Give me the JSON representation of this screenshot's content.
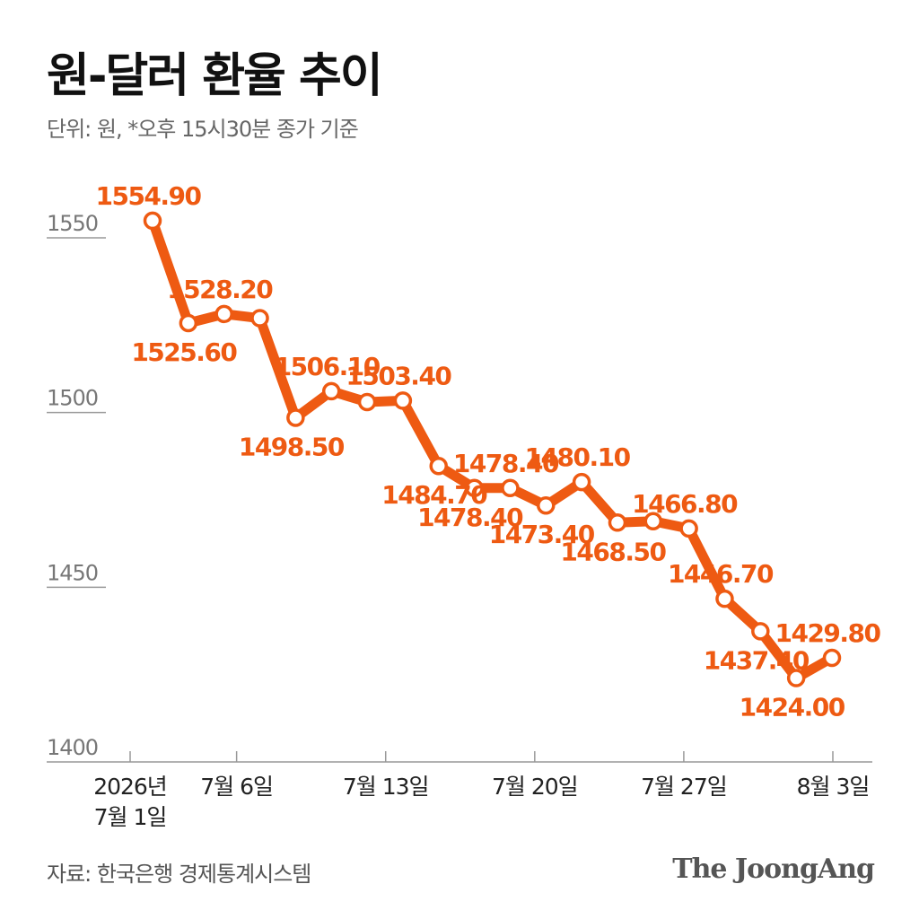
{
  "header": {
    "title": "원-달러 환율 추이",
    "subtitle": "단위: 원, *오후 15시30분 종가 기준"
  },
  "footer": {
    "source": "자료: 한국은행 경제통계시스템",
    "logo_text": "The JoongAng"
  },
  "chart_data": {
    "type": "line",
    "title": "원-달러 환율 추이",
    "unit": "원",
    "ylim": [
      1400,
      1560
    ],
    "yticks": [
      1400,
      1450,
      1500,
      1550
    ],
    "grid": false,
    "color": "#EE5A12",
    "x_tick_labels": [
      {
        "lines": [
          "2026년",
          "7월 1일"
        ],
        "date": "2026-07-01"
      },
      {
        "lines": [
          "7월 6일"
        ],
        "date": "2026-07-06"
      },
      {
        "lines": [
          "7월 13일"
        ],
        "date": "2026-07-13"
      },
      {
        "lines": [
          "7월 20일"
        ],
        "date": "2026-07-20"
      },
      {
        "lines": [
          "7월 27일"
        ],
        "date": "2026-07-27"
      },
      {
        "lines": [
          "8월 3일"
        ],
        "date": "2026-08-03"
      }
    ],
    "points": [
      {
        "date": "2026-07-01",
        "value": 1554.9,
        "label": "1554.90",
        "label_pos": "above"
      },
      {
        "date": "2026-07-02",
        "value": 1525.6,
        "label": "1525.60",
        "label_pos": "below"
      },
      {
        "date": "2026-07-03",
        "value": 1528.2,
        "label": "1528.20",
        "label_pos": "above"
      },
      {
        "date": "2026-07-06",
        "value": 1527.0
      },
      {
        "date": "2026-07-07",
        "value": 1498.5,
        "label": "1498.50",
        "label_pos": "below"
      },
      {
        "date": "2026-07-08",
        "value": 1506.1,
        "label": "1506.10",
        "label_pos": "above"
      },
      {
        "date": "2026-07-09",
        "value": 1503.0
      },
      {
        "date": "2026-07-10",
        "value": 1503.4,
        "label": "1503.40",
        "label_pos": "above"
      },
      {
        "date": "2026-07-13",
        "value": 1484.7,
        "label": "1484.70",
        "label_pos": "below"
      },
      {
        "date": "2026-07-14",
        "value": 1478.4,
        "label": "1478.40",
        "label_pos": "below"
      },
      {
        "date": "2026-07-15",
        "value": 1478.4,
        "label": "1478.40",
        "label_pos": "above"
      },
      {
        "date": "2026-07-16",
        "value": 1473.4,
        "label": "1473.40",
        "label_pos": "below"
      },
      {
        "date": "2026-07-17",
        "value": 1480.1,
        "label": "1480.10",
        "label_pos": "above"
      },
      {
        "date": "2026-07-20",
        "value": 1468.5,
        "label": "1468.50",
        "label_pos": "below"
      },
      {
        "date": "2026-07-21",
        "value": 1468.9
      },
      {
        "date": "2026-07-22",
        "value": 1466.8,
        "label": "1466.80",
        "label_pos": "above"
      },
      {
        "date": "2026-07-23",
        "value": 1446.7,
        "label": "1446.70",
        "label_pos": "above"
      },
      {
        "date": "2026-07-24",
        "value": 1437.4,
        "label": "1437.40",
        "label_pos": "below"
      },
      {
        "date": "2026-07-27",
        "value": 1424.0,
        "label": "1424.00",
        "label_pos": "below"
      },
      {
        "date": "2026-07-28",
        "value": 1429.8,
        "label": "1429.80",
        "label_pos": "above"
      }
    ]
  }
}
